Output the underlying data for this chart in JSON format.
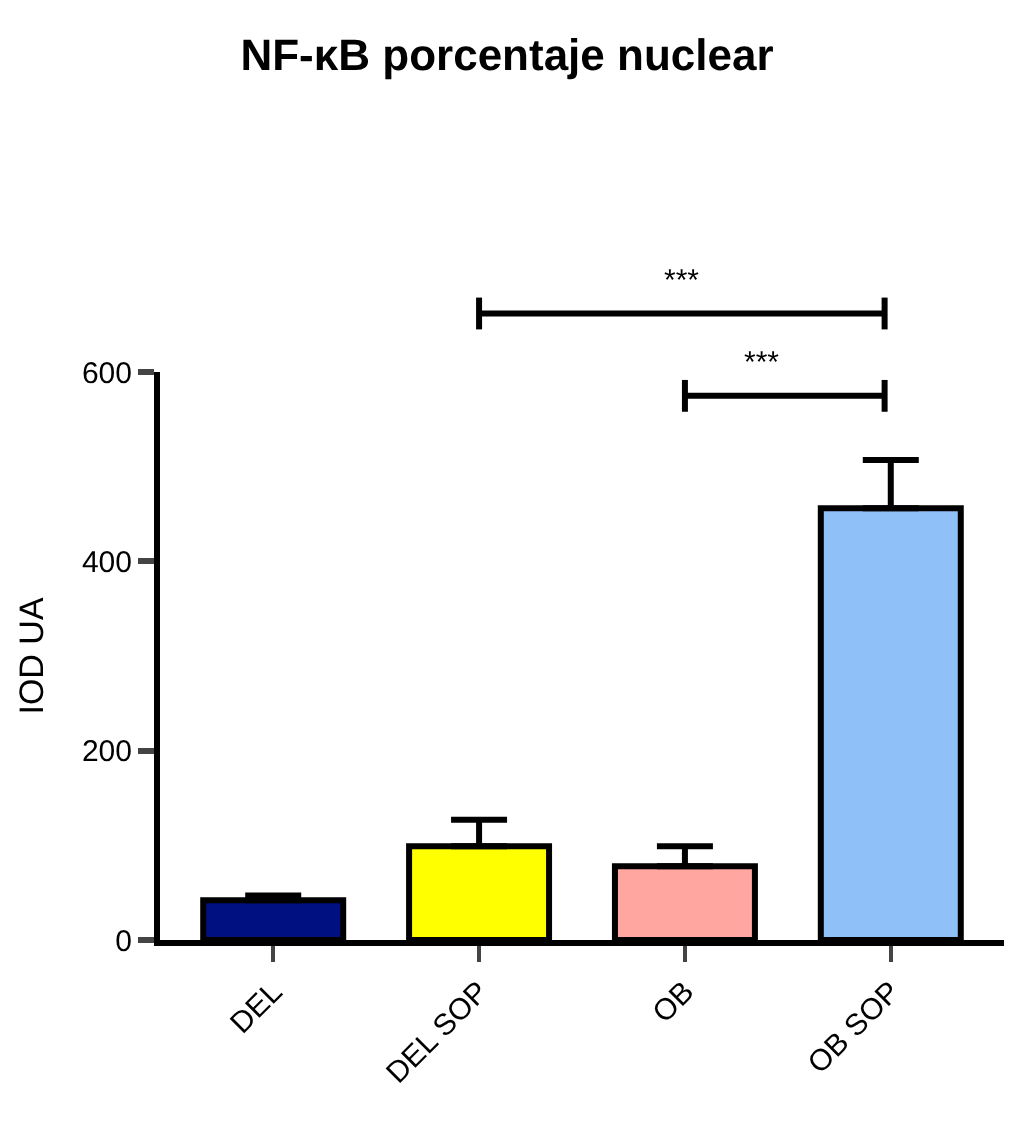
{
  "chart_data": {
    "type": "bar",
    "title": "NF-κB porcentaje nuclear",
    "ylabel": "IOD UA",
    "categories": [
      "DEL",
      "DEL SOP",
      "OB",
      "OB SOP"
    ],
    "values": [
      42,
      99,
      78,
      456
    ],
    "errors": [
      [
        42,
        47
      ],
      [
        99,
        127
      ],
      [
        78,
        99
      ],
      [
        456,
        507
      ]
    ],
    "colors": [
      "#001080",
      "#ffff00",
      "#ffa6a0",
      "#90c0f8"
    ],
    "ylim": [
      0,
      600
    ],
    "yticks": [
      0,
      200,
      400,
      600
    ],
    "annotations": [
      "***",
      "***"
    ]
  }
}
